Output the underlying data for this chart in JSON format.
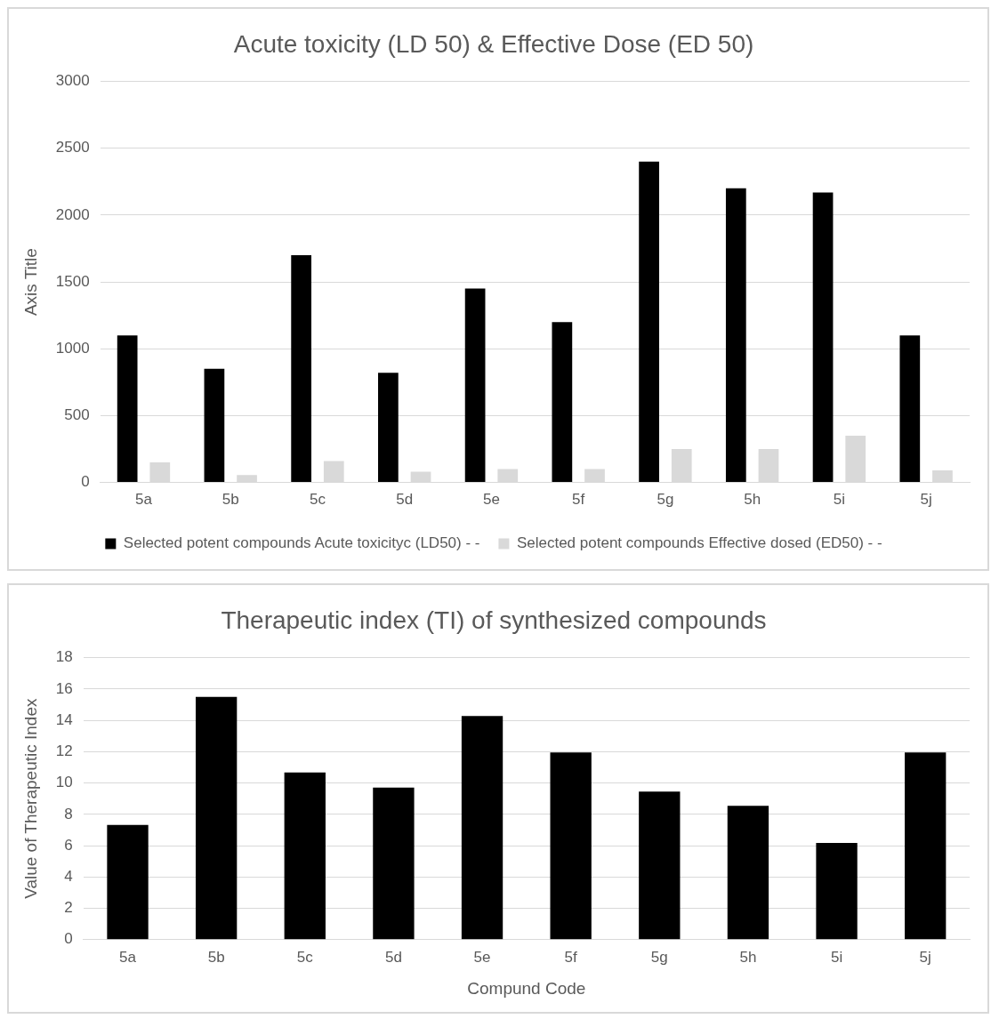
{
  "chart_data": [
    {
      "type": "bar",
      "title": "Acute toxicity (LD 50) & Effective Dose (ED 50)",
      "ylabel": "Axis Title",
      "categories": [
        "5a",
        "5b",
        "5c",
        "5d",
        "5e",
        "5f",
        "5g",
        "5h",
        "5i",
        "5j"
      ],
      "series": [
        {
          "name": "Selected potent compounds Acute toxicityc (LD50) - -",
          "color": "#000000",
          "values": [
            1100,
            850,
            1700,
            820,
            1450,
            1200,
            2400,
            2200,
            2170,
            1100
          ]
        },
        {
          "name": "Selected potent compounds Effective dosed (ED50) - -",
          "color": "#d9d9d9",
          "values": [
            150,
            55,
            160,
            80,
            100,
            100,
            250,
            250,
            350,
            90
          ]
        }
      ],
      "ylim": [
        0,
        3000
      ],
      "yticks": [
        0,
        500,
        1000,
        1500,
        2000,
        2500,
        3000
      ],
      "grid": "y",
      "legend": "bottom"
    },
    {
      "type": "bar",
      "title": "Therapeutic index (TI) of synthesized compounds",
      "xlabel": "Compund Code",
      "ylabel": "Value of Therapeutic Index",
      "categories": [
        "5a",
        "5b",
        "5c",
        "5d",
        "5e",
        "5f",
        "5g",
        "5h",
        "5i",
        "5j"
      ],
      "series": [
        {
          "color": "#000000",
          "values": [
            7.33,
            15.5,
            10.67,
            9.7,
            14.27,
            11.95,
            9.45,
            8.55,
            6.17,
            11.95
          ]
        }
      ],
      "ylim": [
        0,
        18
      ],
      "yticks": [
        0,
        2,
        4,
        6,
        8,
        10,
        12,
        14,
        16,
        18
      ],
      "grid": "y",
      "legend": false
    }
  ]
}
